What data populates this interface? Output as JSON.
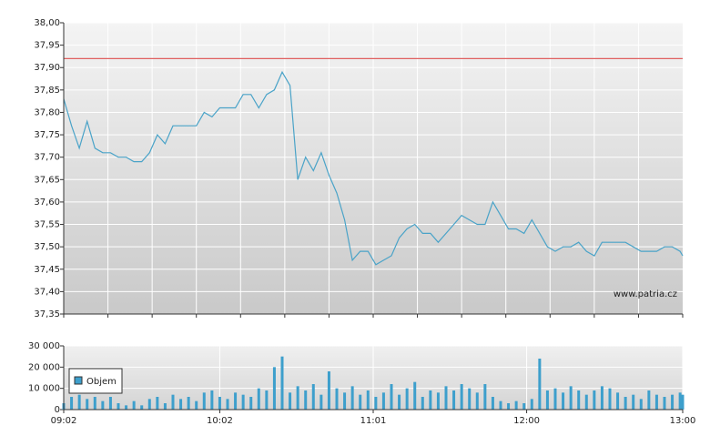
{
  "chart_data": [
    {
      "type": "line",
      "color": "#4aa3c8",
      "reference_line": 37.92,
      "reference_color": "#e06060",
      "xlim": [
        "09:02",
        "13:00"
      ],
      "x": [
        "09:02",
        "09:05",
        "09:08",
        "09:11",
        "09:14",
        "09:17",
        "09:20",
        "09:23",
        "09:26",
        "09:29",
        "09:32",
        "09:35",
        "09:38",
        "09:41",
        "09:44",
        "09:47",
        "09:50",
        "09:53",
        "09:56",
        "09:59",
        "10:02",
        "10:05",
        "10:08",
        "10:11",
        "10:14",
        "10:17",
        "10:20",
        "10:23",
        "10:26",
        "10:29",
        "10:32",
        "10:35",
        "10:38",
        "10:41",
        "10:44",
        "10:47",
        "10:50",
        "10:53",
        "10:56",
        "10:59",
        "11:02",
        "11:05",
        "11:08",
        "11:11",
        "11:14",
        "11:17",
        "11:20",
        "11:23",
        "11:26",
        "11:29",
        "11:32",
        "11:35",
        "11:38",
        "11:41",
        "11:44",
        "11:47",
        "11:50",
        "11:53",
        "11:56",
        "11:59",
        "12:02",
        "12:05",
        "12:08",
        "12:11",
        "12:14",
        "12:17",
        "12:20",
        "12:23",
        "12:26",
        "12:29",
        "12:32",
        "12:35",
        "12:38",
        "12:41",
        "12:44",
        "12:47",
        "12:50",
        "12:53",
        "12:56",
        "12:59",
        "13:00"
      ],
      "values": [
        37.83,
        37.77,
        37.72,
        37.78,
        37.72,
        37.71,
        37.71,
        37.7,
        37.7,
        37.69,
        37.69,
        37.71,
        37.75,
        37.73,
        37.77,
        37.77,
        37.77,
        37.77,
        37.8,
        37.79,
        37.81,
        37.81,
        37.81,
        37.84,
        37.84,
        37.81,
        37.84,
        37.85,
        37.89,
        37.86,
        37.65,
        37.7,
        37.67,
        37.71,
        37.66,
        37.62,
        37.56,
        37.47,
        37.49,
        37.49,
        37.46,
        37.47,
        37.48,
        37.52,
        37.54,
        37.55,
        37.53,
        37.53,
        37.51,
        37.53,
        37.55,
        37.57,
        37.56,
        37.55,
        37.55,
        37.6,
        37.57,
        37.54,
        37.54,
        37.53,
        37.56,
        37.53,
        37.5,
        37.49,
        37.5,
        37.5,
        37.51,
        37.49,
        37.48,
        37.51,
        37.51,
        37.51,
        37.51,
        37.5,
        37.49,
        37.49,
        37.49,
        37.5,
        37.5,
        37.49,
        37.48
      ],
      "ylim": [
        37.35,
        38.0
      ],
      "yticks": [
        {
          "value": 37.35,
          "label": "37,35"
        },
        {
          "value": 37.4,
          "label": "37,40"
        },
        {
          "value": 37.45,
          "label": "37,45"
        },
        {
          "value": 37.5,
          "label": "37,50"
        },
        {
          "value": 37.55,
          "label": "37,55"
        },
        {
          "value": 37.6,
          "label": "37,60"
        },
        {
          "value": 37.65,
          "label": "37,65"
        },
        {
          "value": 37.7,
          "label": "37,70"
        },
        {
          "value": 37.75,
          "label": "37,75"
        },
        {
          "value": 37.8,
          "label": "37,80"
        },
        {
          "value": 37.85,
          "label": "37,85"
        },
        {
          "value": 37.9,
          "label": "37,90"
        },
        {
          "value": 37.95,
          "label": "37,95"
        },
        {
          "value": 38.0,
          "label": "38,00"
        }
      ],
      "watermark": "www.patria.cz"
    },
    {
      "type": "bar",
      "xlim": [
        "09:02",
        "13:00"
      ],
      "xticks": [
        "09:02",
        "10:02",
        "11:01",
        "12:00",
        "13:00"
      ],
      "x": [
        "09:02",
        "09:05",
        "09:08",
        "09:11",
        "09:14",
        "09:17",
        "09:20",
        "09:23",
        "09:26",
        "09:29",
        "09:32",
        "09:35",
        "09:38",
        "09:41",
        "09:44",
        "09:47",
        "09:50",
        "09:53",
        "09:56",
        "09:59",
        "10:02",
        "10:05",
        "10:08",
        "10:11",
        "10:14",
        "10:17",
        "10:20",
        "10:23",
        "10:26",
        "10:29",
        "10:32",
        "10:35",
        "10:38",
        "10:41",
        "10:44",
        "10:47",
        "10:50",
        "10:53",
        "10:56",
        "10:59",
        "11:02",
        "11:05",
        "11:08",
        "11:11",
        "11:14",
        "11:17",
        "11:20",
        "11:23",
        "11:26",
        "11:29",
        "11:32",
        "11:35",
        "11:38",
        "11:41",
        "11:44",
        "11:47",
        "11:50",
        "11:53",
        "11:56",
        "11:59",
        "12:02",
        "12:05",
        "12:08",
        "12:11",
        "12:14",
        "12:17",
        "12:20",
        "12:23",
        "12:26",
        "12:29",
        "12:32",
        "12:35",
        "12:38",
        "12:41",
        "12:44",
        "12:47",
        "12:50",
        "12:53",
        "12:56",
        "12:59",
        "13:00"
      ],
      "series": [
        {
          "name": "Objem",
          "color": "#3d9fcc",
          "values": [
            3000,
            6000,
            7000,
            5000,
            6000,
            4000,
            6000,
            3000,
            2000,
            4000,
            2000,
            5000,
            6000,
            3000,
            7000,
            5000,
            6000,
            4000,
            8000,
            9000,
            6000,
            5000,
            8000,
            7000,
            6000,
            10000,
            9000,
            20000,
            25000,
            8000,
            11000,
            9000,
            12000,
            7000,
            18000,
            10000,
            8000,
            11000,
            7000,
            9000,
            6000,
            8000,
            12000,
            7000,
            10000,
            13000,
            6000,
            9000,
            8000,
            11000,
            9000,
            12000,
            10000,
            8000,
            12000,
            6000,
            4000,
            3000,
            4000,
            3000,
            5000,
            24000,
            9000,
            10000,
            8000,
            11000,
            9000,
            7000,
            9000,
            11000,
            10000,
            8000,
            6000,
            7000,
            5000,
            9000,
            7000,
            6000,
            7000,
            8000,
            7000
          ]
        }
      ],
      "ylim": [
        0,
        30000
      ],
      "yticks": [
        0,
        {
          "value": 10000,
          "label": "10 000"
        },
        {
          "value": 20000,
          "label": "20 000"
        },
        {
          "value": 30000,
          "label": "30 000"
        }
      ]
    }
  ]
}
